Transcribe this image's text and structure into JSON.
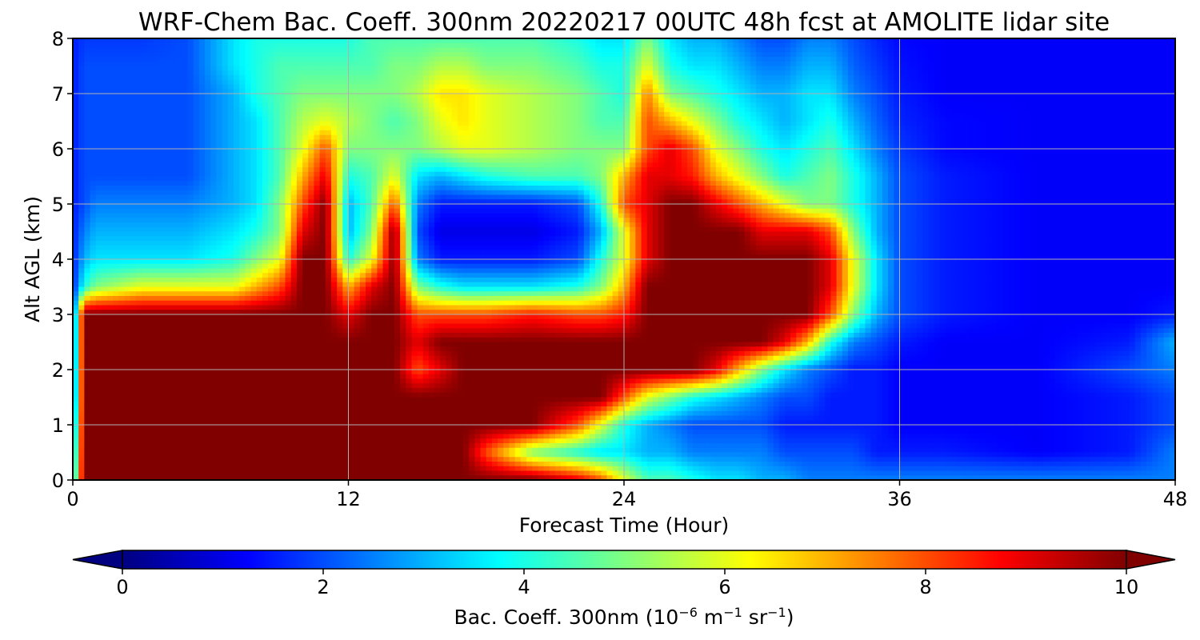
{
  "chart_data": {
    "type": "heatmap",
    "title": "WRF-Chem Bac. Coeff. 300nm  20220217 00UTC 48h fcst at AMOLITE lidar site",
    "xlabel": "Forecast Time (Hour)",
    "ylabel": "Alt AGL (km)",
    "xlim": [
      0,
      48
    ],
    "ylim": [
      0,
      8
    ],
    "xticks": [
      0,
      12,
      24,
      36,
      48
    ],
    "yticks": [
      0,
      1,
      2,
      3,
      4,
      5,
      6,
      7,
      8
    ],
    "grid": true,
    "colormap": "jet",
    "colorbar": {
      "label": "Bac. Coeff. 300nm  (10",
      "label_exp1": "−6",
      "label_mid": " m",
      "label_exp2": "−1",
      "label_mid2": " sr",
      "label_exp3": "−1",
      "label_end": ")",
      "range": [
        0,
        10
      ],
      "ticks": [
        0,
        2,
        4,
        6,
        8,
        10
      ],
      "extend": "both",
      "orientation": "horizontal"
    },
    "x_hours": [
      0,
      0.5,
      1,
      3,
      5,
      7,
      8,
      9,
      10,
      11,
      12,
      13,
      14,
      15,
      16,
      17,
      18,
      20,
      22,
      23,
      24,
      25,
      26,
      27,
      28,
      29,
      30,
      31,
      32,
      33,
      34,
      35,
      36,
      38,
      42,
      46,
      48
    ],
    "y_levels_km": [
      0,
      0.5,
      1,
      1.5,
      2,
      2.5,
      3,
      3.5,
      4,
      4.5,
      5,
      5.5,
      6,
      6.5,
      7,
      7.5,
      8
    ],
    "values_by_altitude": [
      [
        3,
        10,
        10,
        10,
        10,
        10,
        10,
        10,
        10,
        10,
        10,
        10,
        10,
        10,
        10,
        10,
        10,
        10,
        9,
        8,
        6,
        4.5,
        4.5,
        4,
        3.5,
        3.5,
        3,
        3,
        2.5,
        2.5,
        2.5,
        2.5,
        2.5,
        2.5,
        2.5,
        2.5,
        2.5
      ],
      [
        2.5,
        10,
        10,
        10,
        10,
        10,
        10,
        10,
        10,
        10,
        10,
        10,
        10,
        10,
        10,
        10,
        8,
        5,
        4,
        3.5,
        3.5,
        3,
        3,
        2.5,
        2.5,
        2.5,
        2.5,
        2,
        2,
        2,
        2,
        1.5,
        1.5,
        1.5,
        1.2,
        1.5,
        2.5
      ],
      [
        2,
        10,
        10,
        10,
        10,
        10,
        10,
        10,
        10,
        10,
        10,
        10,
        10,
        10,
        10,
        10,
        10,
        10,
        8,
        6,
        4,
        3,
        2.5,
        2,
        2,
        2,
        2,
        1.5,
        1.5,
        1.5,
        1.5,
        1.5,
        1.2,
        1.2,
        1.2,
        1.5,
        2
      ],
      [
        1.5,
        10,
        10,
        10,
        10,
        10,
        10,
        10,
        10,
        10,
        10,
        10,
        10,
        10,
        10,
        10,
        10,
        10,
        10,
        10,
        8,
        6,
        5,
        4,
        3.5,
        3,
        2.5,
        2,
        2,
        1.5,
        1.5,
        1.5,
        1.2,
        1.2,
        1.2,
        1.5,
        2
      ],
      [
        1.5,
        10,
        10,
        10,
        10,
        10,
        10,
        10,
        10,
        10,
        10,
        10,
        10,
        8,
        9,
        10,
        10,
        10,
        10,
        10,
        10,
        10,
        10,
        10,
        9,
        7,
        5,
        3.5,
        2.5,
        2,
        1.5,
        1.5,
        1.2,
        1.2,
        1.2,
        2,
        2.5
      ],
      [
        1.5,
        10,
        10,
        10,
        10,
        10,
        10,
        10,
        10,
        10,
        10,
        10,
        10,
        9,
        10,
        10,
        10,
        10,
        10,
        10,
        10,
        10,
        10,
        10,
        10,
        10,
        10,
        9,
        7,
        4,
        2.5,
        2,
        1.5,
        1.2,
        1.2,
        1.5,
        3
      ],
      [
        1.5,
        10,
        10,
        10,
        10,
        10,
        10,
        10,
        10,
        10,
        9,
        10,
        10,
        8,
        8,
        8,
        8,
        8.5,
        8,
        8,
        8.5,
        10,
        10,
        10,
        10,
        10,
        10,
        10,
        10,
        8,
        5,
        3,
        2,
        1.5,
        1.2,
        1.2,
        1.5
      ],
      [
        1.5,
        4,
        5,
        6,
        6,
        6,
        7,
        8,
        10,
        10,
        7,
        9,
        10,
        5,
        4,
        3.5,
        3.5,
        3.5,
        4,
        5,
        7,
        10,
        10,
        10,
        10,
        10,
        10,
        10,
        10,
        9,
        6,
        3.5,
        2,
        1.5,
        1.2,
        1.2,
        1.2
      ],
      [
        1.5,
        3,
        3.5,
        3.5,
        3.5,
        4,
        5,
        6,
        10,
        10,
        4,
        6,
        10,
        2.5,
        1.5,
        1.5,
        1.5,
        1.5,
        2,
        4,
        6,
        9,
        10,
        10,
        10,
        10,
        10,
        10,
        10,
        9,
        6,
        3.5,
        2,
        1.5,
        1.2,
        1.2,
        1.2
      ],
      [
        1.5,
        2.5,
        3,
        3,
        3,
        3.5,
        4,
        5,
        9,
        10,
        3,
        5,
        10,
        2,
        1,
        1,
        1,
        1,
        1.5,
        3,
        6,
        9,
        10,
        10,
        10,
        10,
        9,
        9,
        9,
        8,
        5,
        3,
        2,
        1.5,
        1.2,
        1.2,
        1.2
      ],
      [
        1.5,
        2,
        2.5,
        2.5,
        2.5,
        3,
        3.5,
        5,
        8,
        10,
        3,
        4.5,
        8,
        2.5,
        1.5,
        1.5,
        1.5,
        1.5,
        2,
        4,
        8,
        9,
        10,
        10,
        9,
        8,
        7,
        6,
        5,
        5,
        4,
        3,
        2,
        1.5,
        1.2,
        1.2,
        1.2
      ],
      [
        1.5,
        2,
        2,
        2,
        2,
        3,
        3.5,
        4.5,
        7,
        9,
        4,
        4.5,
        6,
        3.5,
        3,
        3.5,
        4,
        4.5,
        4.5,
        5,
        7,
        9,
        9,
        8.5,
        7,
        6,
        5,
        4,
        4.5,
        5,
        4,
        3,
        2,
        1.5,
        1.2,
        1.2,
        1.2
      ],
      [
        1.5,
        2,
        2,
        2,
        2,
        3,
        3.5,
        4.5,
        6,
        8,
        5,
        5,
        5,
        5,
        5.5,
        6,
        6,
        5.5,
        5,
        5,
        5,
        8,
        9,
        8,
        6,
        5,
        4,
        3.5,
        4,
        4.5,
        3.5,
        2.5,
        1.8,
        1.3,
        1.2,
        1.2,
        1.2
      ],
      [
        1.5,
        2,
        2,
        2,
        2,
        3,
        3.5,
        4.5,
        5.5,
        6,
        5.5,
        5,
        4.5,
        5,
        6,
        6.5,
        6,
        5.5,
        5,
        4.5,
        4.5,
        8,
        7,
        6,
        5,
        4,
        3.5,
        3,
        3.5,
        4,
        3,
        2.2,
        1.6,
        1.3,
        1.2,
        1.2,
        1.2
      ],
      [
        1.5,
        2,
        2,
        2,
        2,
        3,
        4,
        4.5,
        5,
        5,
        5,
        5,
        5,
        5.5,
        6.5,
        6.5,
        6,
        5.5,
        5,
        4.5,
        4,
        7.5,
        5,
        4.5,
        4,
        3.5,
        3,
        3,
        3.5,
        3.5,
        2.5,
        2,
        1.5,
        1.2,
        1.2,
        1.2,
        1.2
      ],
      [
        1.5,
        2,
        2,
        2,
        2,
        3.5,
        4,
        4.5,
        4.5,
        4.5,
        4.5,
        4.5,
        5,
        5,
        5.5,
        5.5,
        5,
        5,
        4.5,
        4,
        4,
        6,
        4,
        3.5,
        3.5,
        3,
        2.5,
        2.5,
        3,
        3,
        2.2,
        1.8,
        1.4,
        1.2,
        1.2,
        1.2,
        1.2
      ],
      [
        1.5,
        1.8,
        1.8,
        1.8,
        2,
        3.5,
        4,
        4,
        4,
        4,
        4,
        4.5,
        4.5,
        4.5,
        4.5,
        4.5,
        4.5,
        4.5,
        4,
        3.5,
        3.5,
        5,
        3.5,
        3,
        3,
        2.5,
        2,
        2,
        2.5,
        2.5,
        2,
        1.6,
        1.3,
        1.2,
        1.2,
        1.2,
        1.2
      ]
    ]
  }
}
